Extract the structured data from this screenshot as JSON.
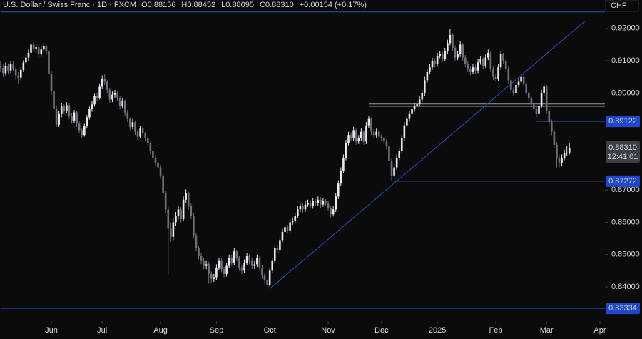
{
  "header": {
    "symbol": "U.S. Dollar / Swiss Franc · 1D · FXCM",
    "ohlc": [
      {
        "label": "O",
        "value": "0.88156"
      },
      {
        "label": "H",
        "value": "0.88452"
      },
      {
        "label": "L",
        "value": "0.88095"
      },
      {
        "label": "C",
        "value": "0.88310"
      }
    ],
    "change": "+0.00154 (+0.17%)"
  },
  "chart_data": {
    "type": "candlestick",
    "currency": "CHF",
    "up_color": "#e8e9ec",
    "down_color": "#6f727b",
    "level_color": "#2f4fb8",
    "gray_level_color": "#9a9ca3",
    "open": [
      0.9085,
      0.9078,
      0.9062,
      0.9085,
      0.907,
      0.909,
      0.9075,
      0.9055,
      0.9048,
      0.9072,
      0.9095,
      0.911,
      0.9125,
      0.915,
      0.9138,
      0.9142,
      0.912,
      0.9135,
      0.9145,
      0.913,
      0.906,
      0.9005,
      0.895,
      0.8902,
      0.8935,
      0.8958,
      0.8945,
      0.8962,
      0.893,
      0.8915,
      0.894,
      0.8905,
      0.8885,
      0.887,
      0.8898,
      0.8925,
      0.895,
      0.8965,
      0.899,
      0.8985,
      0.902,
      0.9045,
      0.9035,
      0.901,
      0.898,
      0.8995,
      0.9,
      0.8985,
      0.896,
      0.8975,
      0.894,
      0.892,
      0.8895,
      0.891,
      0.888,
      0.8865,
      0.889,
      0.8875,
      0.886,
      0.8845,
      0.882,
      0.88,
      0.8785,
      0.877,
      0.8745,
      0.869,
      0.864,
      0.858,
      0.8555,
      0.86,
      0.862,
      0.864,
      0.861,
      0.867,
      0.869,
      0.865,
      0.862,
      0.856,
      0.852,
      0.8495,
      0.848,
      0.8465,
      0.847,
      0.844,
      0.8425,
      0.843,
      0.846,
      0.848,
      0.8455,
      0.844,
      0.8465,
      0.849,
      0.8475,
      0.851,
      0.849,
      0.846,
      0.845,
      0.8475,
      0.8495,
      0.848,
      0.8465,
      0.847,
      0.849,
      0.846,
      0.8435,
      0.842,
      0.8405,
      0.845,
      0.848,
      0.852,
      0.8515,
      0.8545,
      0.857,
      0.8585,
      0.8575,
      0.86,
      0.8605,
      0.862,
      0.864,
      0.865,
      0.864,
      0.8655,
      0.866,
      0.865,
      0.8665,
      0.866,
      0.867,
      0.8655,
      0.8665,
      0.866,
      0.8645,
      0.8625,
      0.864,
      0.868,
      0.872,
      0.876,
      0.88,
      0.8845,
      0.887,
      0.886,
      0.8885,
      0.885,
      0.886,
      0.888,
      0.885,
      0.89,
      0.892,
      0.888,
      0.887,
      0.888,
      0.8865,
      0.886,
      0.885,
      0.8835,
      0.879,
      0.8745,
      0.877,
      0.88,
      0.882,
      0.886,
      0.89,
      0.892,
      0.8935,
      0.895,
      0.896,
      0.8965,
      0.898,
      0.9,
      0.904,
      0.9065,
      0.908,
      0.91,
      0.909,
      0.9115,
      0.912,
      0.9105,
      0.913,
      0.9155,
      0.918,
      0.914,
      0.911,
      0.912,
      0.915,
      0.911,
      0.909,
      0.9075,
      0.9065,
      0.908,
      0.907,
      0.9095,
      0.9105,
      0.9085,
      0.911,
      0.9125,
      0.9075,
      0.905,
      0.9045,
      0.908,
      0.912,
      0.91,
      0.9075,
      0.904,
      0.901,
      0.9,
      0.9025,
      0.9035,
      0.905,
      0.903,
      0.9,
      0.8985,
      0.8965,
      0.895,
      0.8935,
      0.896,
      0.9,
      0.902,
      0.8945,
      0.891,
      0.888,
      0.884,
      0.88,
      0.8785,
      0.88,
      0.8815,
      0.88156
    ],
    "high": [
      0.91,
      0.9088,
      0.9095,
      0.9092,
      0.91,
      0.9098,
      0.908,
      0.9065,
      0.908,
      0.9102,
      0.912,
      0.9135,
      0.916,
      0.9158,
      0.9152,
      0.9148,
      0.9145,
      0.9155,
      0.915,
      0.9138,
      0.9068,
      0.9012,
      0.8962,
      0.8945,
      0.8968,
      0.8965,
      0.8972,
      0.8968,
      0.8938,
      0.8948,
      0.8945,
      0.8912,
      0.8892,
      0.8905,
      0.8932,
      0.8958,
      0.8975,
      0.8998,
      0.9,
      0.903,
      0.9055,
      0.9058,
      0.904,
      0.9015,
      0.9005,
      0.901,
      0.9005,
      0.899,
      0.8985,
      0.898,
      0.8948,
      0.8925,
      0.892,
      0.8915,
      0.8888,
      0.8898,
      0.8895,
      0.888,
      0.8868,
      0.885,
      0.8828,
      0.8808,
      0.8792,
      0.8778,
      0.875,
      0.8698,
      0.8648,
      0.86,
      0.8612,
      0.8632,
      0.865,
      0.8648,
      0.868,
      0.8702,
      0.8695,
      0.8658,
      0.8628,
      0.8568,
      0.8528,
      0.8505,
      0.849,
      0.848,
      0.8478,
      0.8448,
      0.844,
      0.847,
      0.849,
      0.8488,
      0.8462,
      0.8475,
      0.85,
      0.8498,
      0.852,
      0.8515,
      0.8495,
      0.8468,
      0.8485,
      0.8505,
      0.8502,
      0.8488,
      0.848,
      0.85,
      0.8495,
      0.8468,
      0.8442,
      0.8428,
      0.8458,
      0.849,
      0.853,
      0.853,
      0.8555,
      0.858,
      0.8595,
      0.8592,
      0.861,
      0.8615,
      0.863,
      0.865,
      0.866,
      0.8658,
      0.8665,
      0.867,
      0.8668,
      0.8675,
      0.8672,
      0.868,
      0.8678,
      0.8675,
      0.8672,
      0.8668,
      0.8652,
      0.865,
      0.869,
      0.873,
      0.877,
      0.881,
      0.8855,
      0.888,
      0.8878,
      0.8895,
      0.889,
      0.887,
      0.889,
      0.8885,
      0.891,
      0.893,
      0.8925,
      0.8888,
      0.889,
      0.8888,
      0.8872,
      0.8868,
      0.8858,
      0.884,
      0.8798,
      0.878,
      0.881,
      0.883,
      0.887,
      0.891,
      0.893,
      0.8945,
      0.896,
      0.897,
      0.8975,
      0.899,
      0.901,
      0.905,
      0.9075,
      0.909,
      0.911,
      0.9108,
      0.9125,
      0.913,
      0.9128,
      0.914,
      0.9165,
      0.9198,
      0.9185,
      0.9148,
      0.913,
      0.916,
      0.9155,
      0.9118,
      0.9098,
      0.9082,
      0.909,
      0.9088,
      0.9105,
      0.9115,
      0.9112,
      0.912,
      0.9135,
      0.913,
      0.9082,
      0.9058,
      0.909,
      0.913,
      0.9125,
      0.9108,
      0.9082,
      0.9048,
      0.9018,
      0.9035,
      0.9045,
      0.906,
      0.9058,
      0.9038,
      0.9008,
      0.8992,
      0.8972,
      0.8958,
      0.897,
      0.901,
      0.903,
      0.9025,
      0.8952,
      0.8918,
      0.8888,
      0.8848,
      0.8808,
      0.881,
      0.8825,
      0.8835,
      0.88452
    ],
    "low": [
      0.9065,
      0.905,
      0.9055,
      0.906,
      0.9062,
      0.9068,
      0.904,
      0.903,
      0.904,
      0.9065,
      0.9088,
      0.91,
      0.9118,
      0.9128,
      0.9125,
      0.911,
      0.9112,
      0.9128,
      0.9118,
      0.905,
      0.8995,
      0.894,
      0.8895,
      0.8895,
      0.8925,
      0.8935,
      0.8938,
      0.892,
      0.8905,
      0.8908,
      0.8895,
      0.8875,
      0.886,
      0.8865,
      0.889,
      0.8918,
      0.8942,
      0.8958,
      0.8975,
      0.898,
      0.9012,
      0.9025,
      0.9,
      0.897,
      0.8972,
      0.8985,
      0.8975,
      0.895,
      0.8952,
      0.893,
      0.891,
      0.8885,
      0.8888,
      0.887,
      0.8855,
      0.886,
      0.8865,
      0.885,
      0.8835,
      0.881,
      0.879,
      0.8775,
      0.876,
      0.8735,
      0.868,
      0.863,
      0.8438,
      0.854,
      0.8545,
      0.859,
      0.861,
      0.86,
      0.8605,
      0.866,
      0.864,
      0.861,
      0.855,
      0.851,
      0.8485,
      0.847,
      0.8455,
      0.8455,
      0.841,
      0.8412,
      0.8415,
      0.8422,
      0.8452,
      0.8445,
      0.843,
      0.8432,
      0.8458,
      0.8465,
      0.8468,
      0.848,
      0.845,
      0.844,
      0.8442,
      0.8468,
      0.847,
      0.8455,
      0.8455,
      0.8462,
      0.845,
      0.8425,
      0.841,
      0.8398,
      0.84,
      0.8442,
      0.8472,
      0.8505,
      0.8508,
      0.8538,
      0.8562,
      0.8565,
      0.8568,
      0.8592,
      0.8598,
      0.8612,
      0.8632,
      0.863,
      0.8632,
      0.8648,
      0.8642,
      0.8642,
      0.8652,
      0.8652,
      0.8645,
      0.8648,
      0.865,
      0.8635,
      0.8615,
      0.8618,
      0.8632,
      0.8672,
      0.8712,
      0.8752,
      0.8792,
      0.8838,
      0.885,
      0.8852,
      0.884,
      0.8842,
      0.8852,
      0.884,
      0.8842,
      0.8892,
      0.887,
      0.886,
      0.8862,
      0.8855,
      0.885,
      0.884,
      0.8825,
      0.878,
      0.873,
      0.8738,
      0.8762,
      0.8792,
      0.8812,
      0.8852,
      0.8892,
      0.8912,
      0.8928,
      0.8942,
      0.8952,
      0.8958,
      0.8972,
      0.8992,
      0.9032,
      0.9058,
      0.9072,
      0.908,
      0.9082,
      0.9108,
      0.9095,
      0.9098,
      0.9122,
      0.9148,
      0.913,
      0.91,
      0.9102,
      0.9112,
      0.91,
      0.908,
      0.9065,
      0.9055,
      0.9058,
      0.906,
      0.9062,
      0.9088,
      0.9075,
      0.9078,
      0.9102,
      0.9065,
      0.904,
      0.9035,
      0.9038,
      0.9072,
      0.909,
      0.9065,
      0.903,
      0.9,
      0.899,
      0.8992,
      0.9018,
      0.9028,
      0.902,
      0.899,
      0.8975,
      0.8955,
      0.894,
      0.8925,
      0.8928,
      0.8952,
      0.8992,
      0.8935,
      0.89,
      0.887,
      0.883,
      0.877,
      0.877,
      0.8775,
      0.8792,
      0.8805,
      0.88095
    ],
    "close": [
      0.9078,
      0.9062,
      0.9085,
      0.907,
      0.909,
      0.9075,
      0.9055,
      0.9048,
      0.9072,
      0.9095,
      0.911,
      0.9125,
      0.915,
      0.9138,
      0.9142,
      0.912,
      0.9135,
      0.9145,
      0.913,
      0.906,
      0.9005,
      0.895,
      0.8902,
      0.8935,
      0.8958,
      0.8945,
      0.8962,
      0.893,
      0.8915,
      0.894,
      0.8905,
      0.8885,
      0.887,
      0.8898,
      0.8925,
      0.895,
      0.8965,
      0.899,
      0.8985,
      0.902,
      0.9045,
      0.9035,
      0.901,
      0.898,
      0.8995,
      0.9,
      0.8985,
      0.896,
      0.8975,
      0.894,
      0.892,
      0.8895,
      0.891,
      0.888,
      0.8865,
      0.889,
      0.8875,
      0.886,
      0.8845,
      0.882,
      0.88,
      0.8785,
      0.877,
      0.8745,
      0.869,
      0.864,
      0.858,
      0.8555,
      0.86,
      0.862,
      0.864,
      0.861,
      0.867,
      0.869,
      0.865,
      0.862,
      0.856,
      0.852,
      0.8495,
      0.848,
      0.8465,
      0.847,
      0.844,
      0.8425,
      0.843,
      0.846,
      0.848,
      0.8455,
      0.844,
      0.8465,
      0.849,
      0.8475,
      0.851,
      0.849,
      0.846,
      0.845,
      0.8475,
      0.8495,
      0.848,
      0.8465,
      0.847,
      0.849,
      0.846,
      0.8435,
      0.842,
      0.8405,
      0.845,
      0.848,
      0.852,
      0.8515,
      0.8545,
      0.857,
      0.8585,
      0.8575,
      0.86,
      0.8605,
      0.862,
      0.864,
      0.865,
      0.864,
      0.8655,
      0.866,
      0.865,
      0.8665,
      0.866,
      0.867,
      0.8655,
      0.8665,
      0.866,
      0.8645,
      0.8625,
      0.864,
      0.868,
      0.872,
      0.876,
      0.88,
      0.8845,
      0.887,
      0.886,
      0.8885,
      0.885,
      0.886,
      0.888,
      0.885,
      0.89,
      0.892,
      0.888,
      0.887,
      0.888,
      0.8865,
      0.886,
      0.885,
      0.8835,
      0.879,
      0.8745,
      0.877,
      0.88,
      0.882,
      0.886,
      0.89,
      0.892,
      0.8935,
      0.895,
      0.896,
      0.8965,
      0.898,
      0.9,
      0.904,
      0.9065,
      0.908,
      0.91,
      0.909,
      0.9115,
      0.912,
      0.9105,
      0.913,
      0.9155,
      0.918,
      0.914,
      0.911,
      0.912,
      0.915,
      0.911,
      0.909,
      0.9075,
      0.9065,
      0.908,
      0.907,
      0.9095,
      0.9105,
      0.9085,
      0.911,
      0.9125,
      0.9075,
      0.905,
      0.9045,
      0.908,
      0.912,
      0.91,
      0.9075,
      0.904,
      0.901,
      0.9,
      0.9025,
      0.9035,
      0.905,
      0.903,
      0.9,
      0.8985,
      0.8965,
      0.895,
      0.8935,
      0.896,
      0.9,
      0.902,
      0.8945,
      0.891,
      0.888,
      0.884,
      0.88,
      0.8785,
      0.88,
      0.8815,
      0.88156,
      0.8831
    ],
    "xticks": [
      {
        "value": 20,
        "label": "Jun"
      },
      {
        "value": 40,
        "label": "Jul"
      },
      {
        "value": 63,
        "label": "Aug"
      },
      {
        "value": 85,
        "label": "Sep"
      },
      {
        "value": 106,
        "label": "Oct"
      },
      {
        "value": 129,
        "label": "Nov"
      },
      {
        "value": 150,
        "label": "Dec"
      },
      {
        "value": 172,
        "label": "2025"
      },
      {
        "value": 195,
        "label": "Feb"
      },
      {
        "value": 215,
        "label": "Mar"
      },
      {
        "value": 236,
        "label": "Apr"
      }
    ],
    "ylim": [
      0.8294,
      0.9288
    ],
    "yticks": [
      {
        "value": 0.92,
        "label": "0.92000"
      },
      {
        "value": 0.91,
        "label": "0.91000"
      },
      {
        "value": 0.9,
        "label": "0.90000"
      },
      {
        "value": 0.87,
        "label": "0.87000"
      },
      {
        "value": 0.86,
        "label": "0.86000"
      },
      {
        "value": 0.85,
        "label": "0.85000"
      },
      {
        "value": 0.84,
        "label": "0.84000"
      }
    ],
    "levels": [
      {
        "value": 0.89122,
        "from": 211,
        "labeled": true
      },
      {
        "value": 0.87272,
        "from": 155,
        "labeled": true
      },
      {
        "value": 0.83334,
        "from": 0,
        "labeled": true
      },
      {
        "value": 0.9251,
        "from": 0,
        "labeled": false
      }
    ],
    "gray_levels": [
      {
        "value": 0.8966,
        "from": 145
      },
      {
        "value": 0.8959,
        "from": 145
      }
    ],
    "trendline": {
      "x": [
        106,
        230
      ],
      "y": [
        0.8394,
        0.9222
      ]
    },
    "current": {
      "label": "0.88310",
      "value": 0.8831,
      "countdown": "12:41:01"
    }
  }
}
